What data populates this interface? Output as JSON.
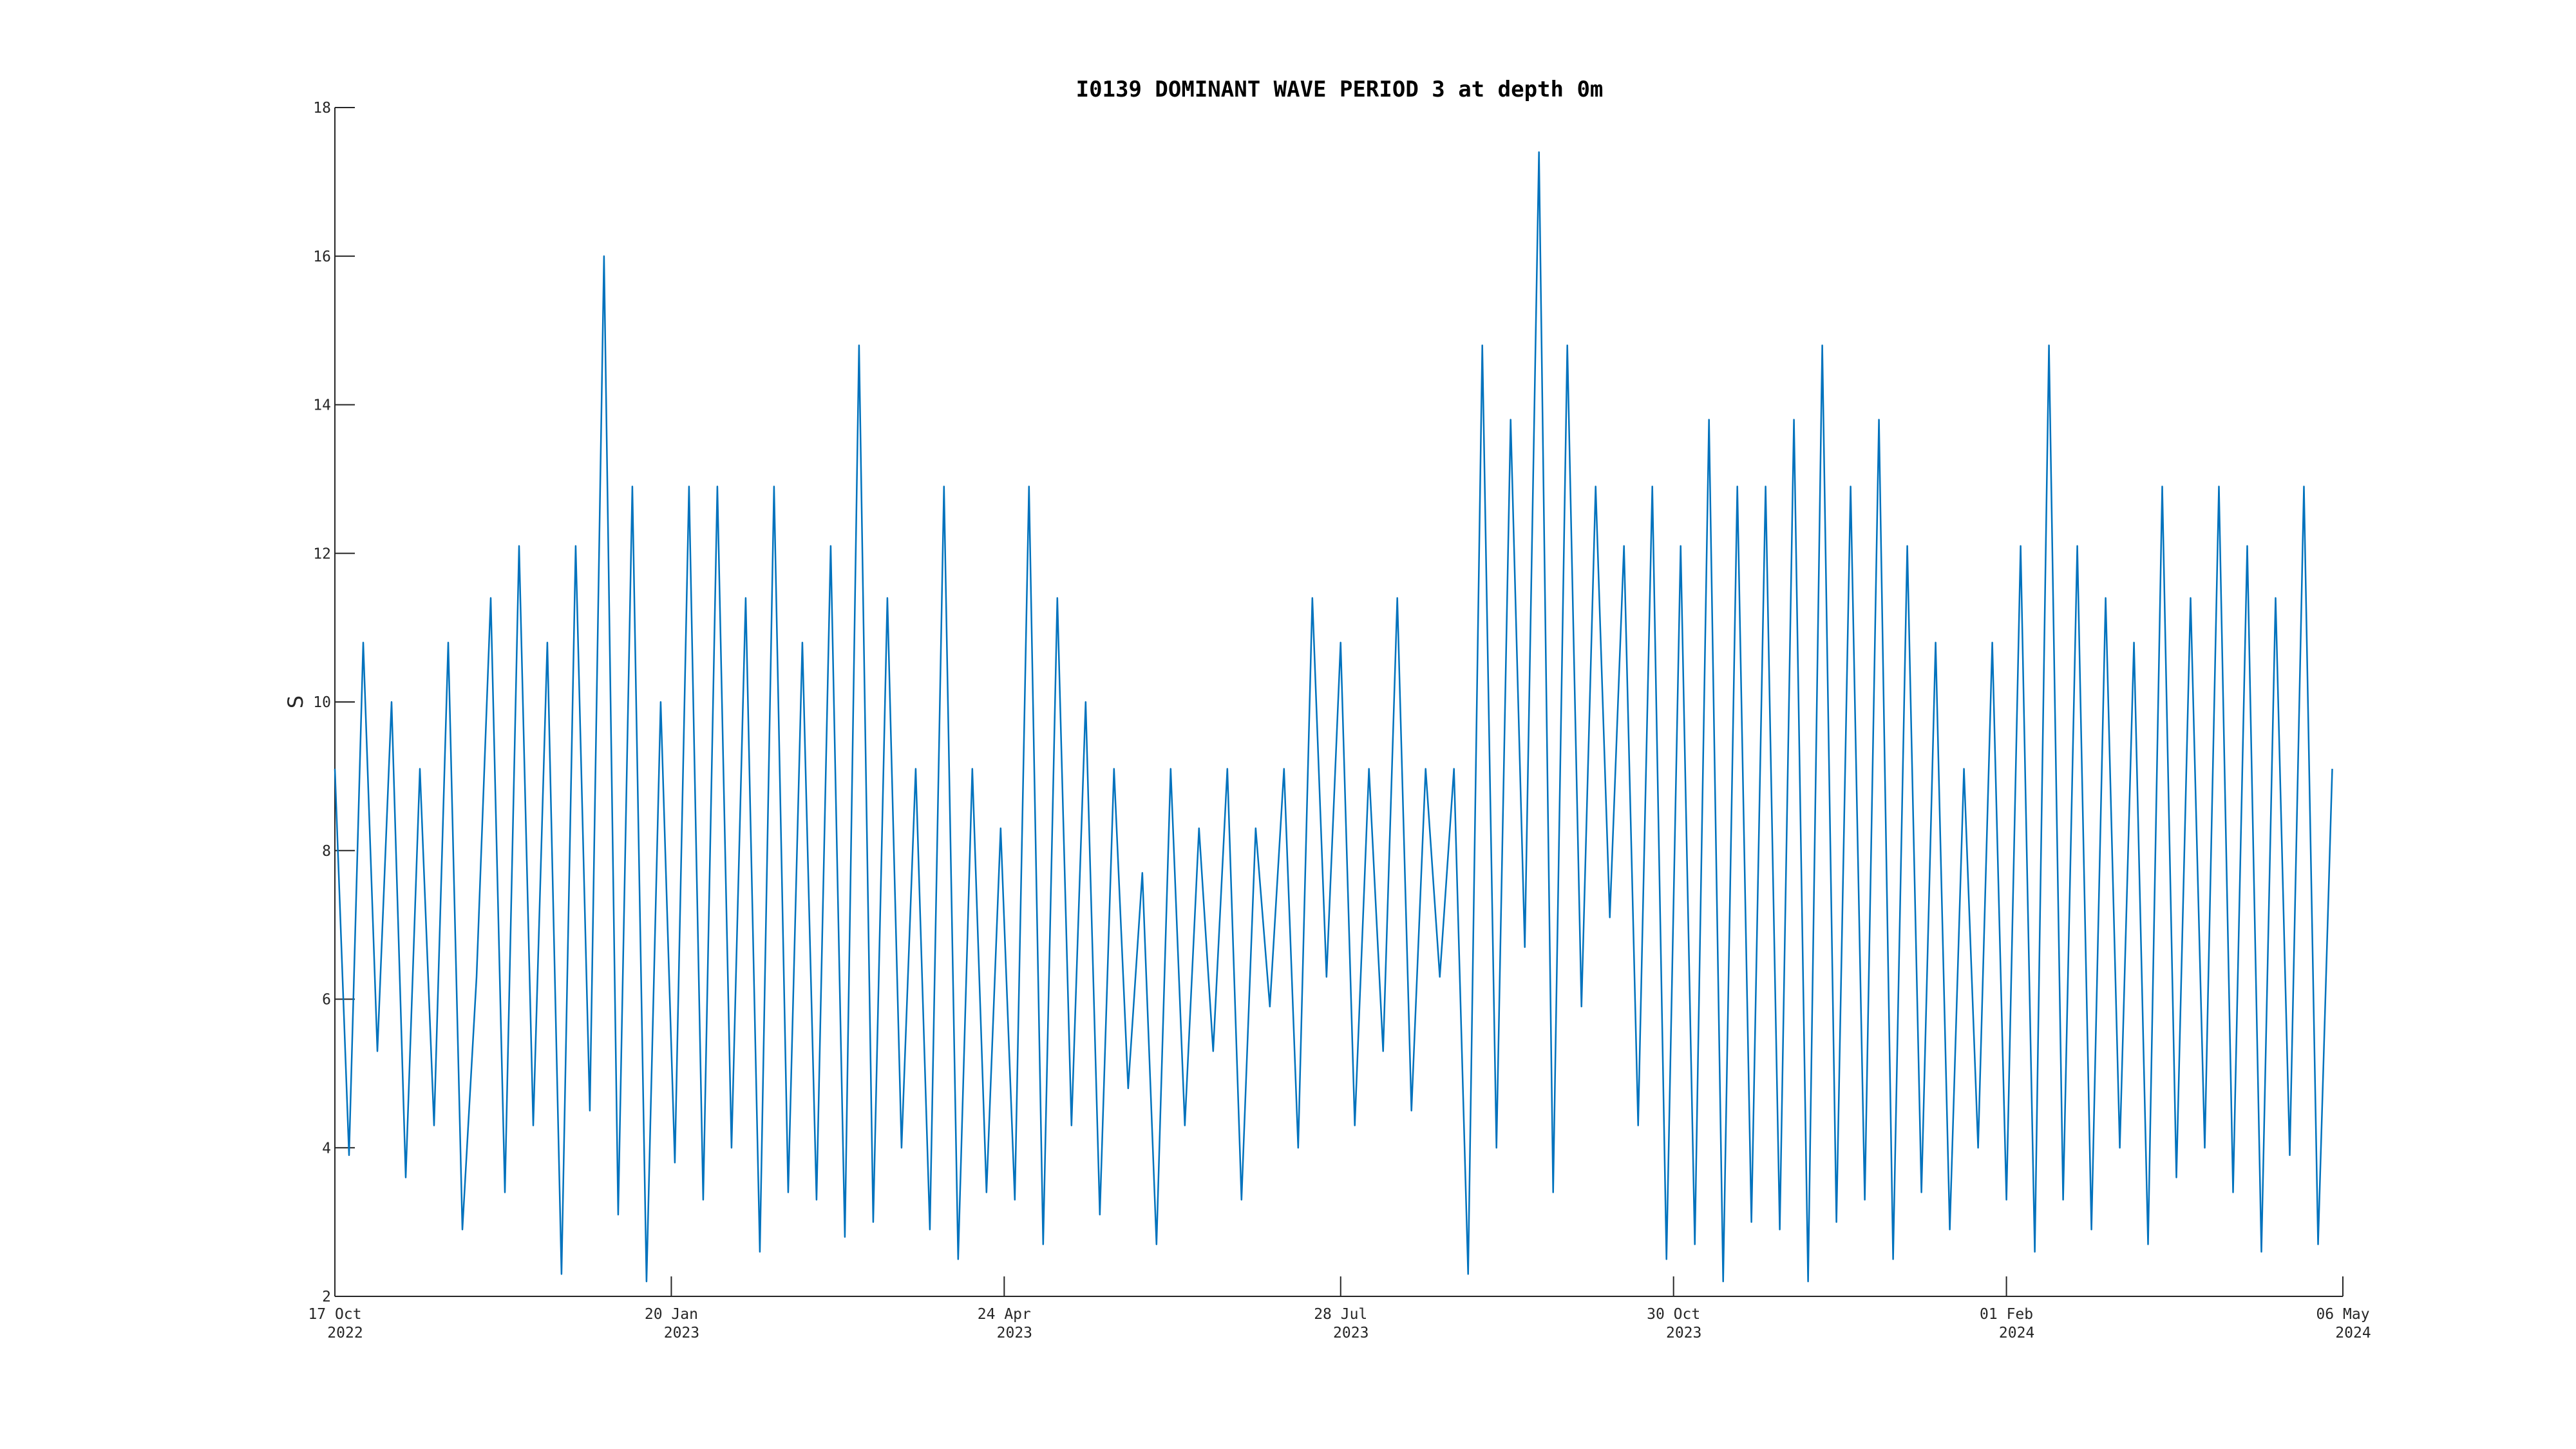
{
  "chart_data": {
    "type": "line",
    "title": "I0139 DOMINANT WAVE PERIOD 3 at depth 0m",
    "y_label": "S",
    "xlim": [
      "2022-10-17",
      "2024-05-06"
    ],
    "xticks": [
      {
        "value": "2022-10-17",
        "label": [
          "17 Oct",
          "2022"
        ]
      },
      {
        "value": "2023-01-20",
        "label": [
          "20 Jan",
          "2023"
        ]
      },
      {
        "value": "2023-04-24",
        "label": [
          "24 Apr",
          "2023"
        ]
      },
      {
        "value": "2023-07-28",
        "label": [
          "28 Jul",
          "2023"
        ]
      },
      {
        "value": "2023-10-30",
        "label": [
          "30 Oct",
          "2023"
        ]
      },
      {
        "value": "2024-02-01",
        "label": [
          "01 Feb",
          "2024"
        ]
      },
      {
        "value": "2024-05-06",
        "label": [
          "06 May",
          "2024"
        ]
      }
    ],
    "ylim": [
      2,
      18
    ],
    "yticks": [
      2,
      4,
      6,
      8,
      10,
      12,
      14,
      16,
      18
    ],
    "x": [
      "2022-10-17",
      "2022-10-21",
      "2022-10-25",
      "2022-10-29",
      "2022-11-02",
      "2022-11-06",
      "2022-11-10",
      "2022-11-14",
      "2022-11-18",
      "2022-11-22",
      "2022-11-26",
      "2022-11-30",
      "2022-12-04",
      "2022-12-08",
      "2022-12-12",
      "2022-12-16",
      "2022-12-20",
      "2022-12-24",
      "2022-12-28",
      "2023-01-01",
      "2023-01-05",
      "2023-01-09",
      "2023-01-13",
      "2023-01-17",
      "2023-01-21",
      "2023-01-25",
      "2023-01-29",
      "2023-02-02",
      "2023-02-06",
      "2023-02-10",
      "2023-02-14",
      "2023-02-18",
      "2023-02-22",
      "2023-02-26",
      "2023-03-02",
      "2023-03-06",
      "2023-03-10",
      "2023-03-14",
      "2023-03-18",
      "2023-03-22",
      "2023-03-26",
      "2023-03-30",
      "2023-04-03",
      "2023-04-07",
      "2023-04-11",
      "2023-04-15",
      "2023-04-19",
      "2023-04-23",
      "2023-04-27",
      "2023-05-01",
      "2023-05-05",
      "2023-05-09",
      "2023-05-13",
      "2023-05-17",
      "2023-05-21",
      "2023-05-25",
      "2023-05-29",
      "2023-06-02",
      "2023-06-06",
      "2023-06-10",
      "2023-06-14",
      "2023-06-18",
      "2023-06-22",
      "2023-06-26",
      "2023-06-30",
      "2023-07-04",
      "2023-07-08",
      "2023-07-12",
      "2023-07-16",
      "2023-07-20",
      "2023-07-24",
      "2023-07-28",
      "2023-08-01",
      "2023-08-05",
      "2023-08-09",
      "2023-08-13",
      "2023-08-17",
      "2023-08-21",
      "2023-08-25",
      "2023-08-29",
      "2023-09-02",
      "2023-09-06",
      "2023-09-10",
      "2023-09-14",
      "2023-09-18",
      "2023-09-22",
      "2023-09-26",
      "2023-09-30",
      "2023-10-04",
      "2023-10-08",
      "2023-10-12",
      "2023-10-16",
      "2023-10-20",
      "2023-10-24",
      "2023-10-28",
      "2023-11-01",
      "2023-11-05",
      "2023-11-09",
      "2023-11-13",
      "2023-11-17",
      "2023-11-21",
      "2023-11-25",
      "2023-11-29",
      "2023-12-03",
      "2023-12-07",
      "2023-12-11",
      "2023-12-15",
      "2023-12-19",
      "2023-12-23",
      "2023-12-27",
      "2023-12-31",
      "2024-01-04",
      "2024-01-08",
      "2024-01-12",
      "2024-01-16",
      "2024-01-20",
      "2024-01-24",
      "2024-01-28",
      "2024-02-01",
      "2024-02-05",
      "2024-02-09",
      "2024-02-13",
      "2024-02-17",
      "2024-02-21",
      "2024-02-25",
      "2024-02-29",
      "2024-03-04",
      "2024-03-08",
      "2024-03-12",
      "2024-03-16",
      "2024-03-20",
      "2024-03-24",
      "2024-03-28",
      "2024-04-01",
      "2024-04-05",
      "2024-04-09",
      "2024-04-13",
      "2024-04-17",
      "2024-04-21",
      "2024-04-25",
      "2024-04-29",
      "2024-05-03"
    ],
    "series": [
      {
        "color": "#0072bd",
        "values": [
          9.1,
          3.9,
          10.8,
          5.3,
          10,
          3.6,
          9.1,
          4.3,
          10.8,
          2.9,
          6.3,
          11.4,
          3.4,
          12.1,
          4.3,
          10.8,
          2.3,
          12.1,
          4.5,
          16,
          3.1,
          12.9,
          2.2,
          10,
          3.8,
          12.9,
          3.3,
          12.9,
          4.0,
          11.4,
          2.6,
          12.9,
          3.4,
          10.8,
          3.3,
          12.1,
          2.8,
          14.8,
          3.0,
          11.4,
          4.0,
          9.1,
          2.9,
          12.9,
          2.5,
          9.1,
          3.4,
          8.3,
          3.3,
          12.9,
          2.7,
          11.4,
          4.3,
          10,
          3.1,
          9.1,
          4.8,
          7.7,
          2.7,
          9.1,
          4.3,
          8.3,
          5.3,
          9.1,
          3.3,
          8.3,
          5.9,
          9.1,
          4.0,
          11.4,
          6.3,
          10.8,
          4.3,
          9.1,
          5.3,
          11.4,
          4.5,
          9.1,
          6.3,
          9.1,
          2.3,
          14.8,
          4.0,
          13.8,
          6.7,
          17.4,
          3.4,
          14.8,
          5.9,
          12.9,
          7.1,
          12.1,
          4.3,
          12.9,
          2.5,
          12.1,
          2.7,
          13.8,
          2.2,
          12.9,
          3.0,
          12.9,
          2.9,
          13.8,
          2.2,
          14.8,
          3.0,
          12.9,
          3.3,
          13.8,
          2.5,
          12.1,
          3.4,
          10.8,
          2.9,
          9.1,
          4.0,
          10.8,
          3.3,
          12.1,
          2.6,
          14.8,
          3.3,
          12.1,
          2.9,
          11.4,
          4.0,
          10.8,
          2.7,
          12.9,
          3.6,
          11.4,
          4.0,
          12.9,
          3.4,
          12.1,
          2.6,
          11.4,
          3.9,
          12.9,
          2.7,
          9.1
        ]
      }
    ]
  }
}
